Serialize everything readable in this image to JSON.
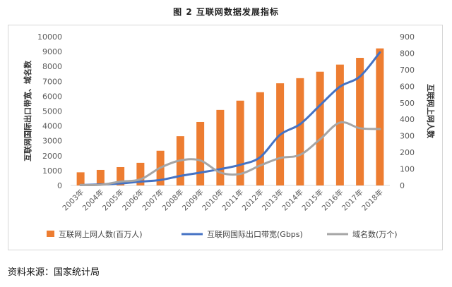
{
  "title": "图 2  互联网数据发展指标",
  "source": "资料来源：国家统计局",
  "chart_data": {
    "type": "bar",
    "categories": [
      "2003年",
      "2004年",
      "2005年",
      "2006年",
      "2007年",
      "2008年",
      "2009年",
      "2010年",
      "2011年",
      "2012年",
      "2013年",
      "2014年",
      "2015年",
      "2016年",
      "2017年",
      "2018年"
    ],
    "left_axis": {
      "label": "互联网国际出口带宽、域名数",
      "ylim": [
        0,
        10000
      ],
      "ticks": [
        "0",
        "1000",
        "2000",
        "3000",
        "4000",
        "5000",
        "6000",
        "7000",
        "8000",
        "9000",
        "10000"
      ]
    },
    "right_axis": {
      "label": "互联网上网人数",
      "ylim": [
        0,
        900
      ],
      "ticks": [
        "0",
        "100",
        "200",
        "300",
        "400",
        "500",
        "600",
        "700",
        "800",
        "900"
      ]
    },
    "grid": false,
    "legend_position": "bottom",
    "series": [
      {
        "name": "互联网上网人数(百万人)",
        "type": "bar",
        "axis": "right",
        "color": "#ed7d31",
        "values": [
          79.5,
          94,
          111,
          137,
          210,
          298,
          384,
          457,
          513,
          564,
          618,
          649,
          688,
          731,
          772,
          829
        ]
      },
      {
        "name": "互联网国际出口带宽(Gbps)",
        "type": "line",
        "axis": "left",
        "color": "#4472c4",
        "values": [
          27,
          74,
          136,
          257,
          368,
          640,
          866,
          1099,
          1389,
          1900,
          3406,
          4118,
          5392,
          6640,
          7321,
          8946
        ]
      },
      {
        "name": "域名数(万个)",
        "type": "line",
        "axis": "left",
        "color": "#a5a5a5",
        "values": [
          34,
          43,
          259,
          411,
          1193,
          1683,
          1682,
          866,
          775,
          1341,
          1844,
          2060,
          3102,
          4228,
          3848,
          3793
        ]
      }
    ]
  }
}
